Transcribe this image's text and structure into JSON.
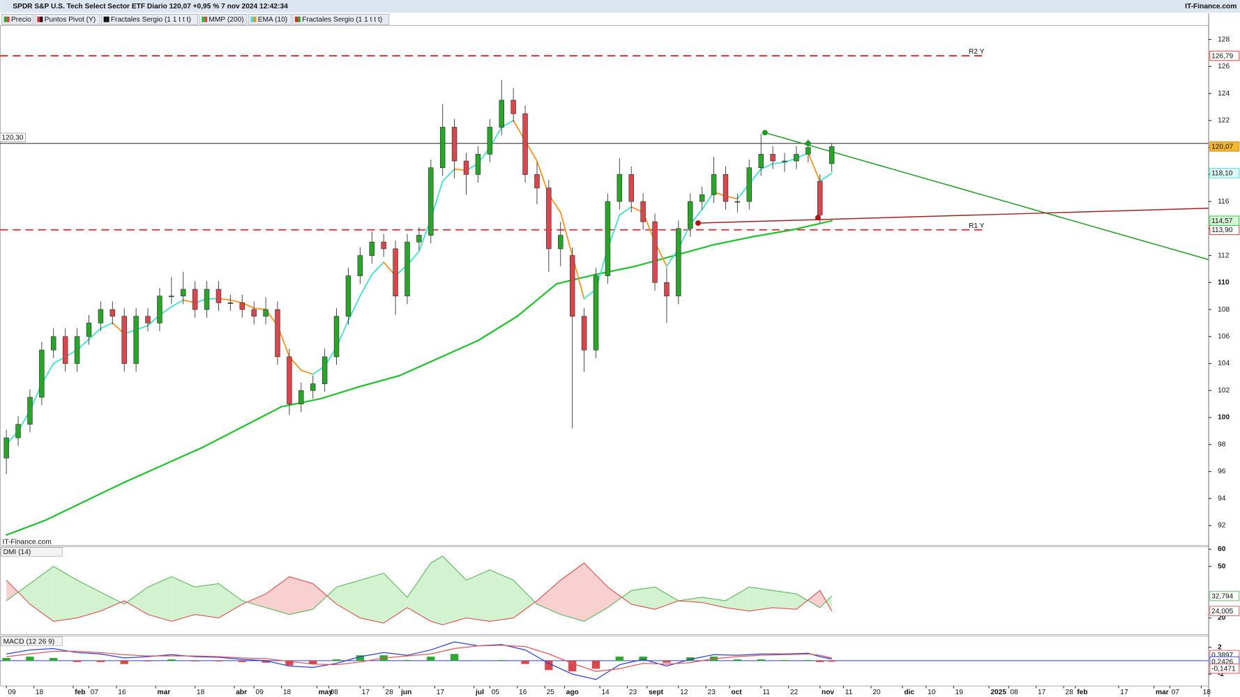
{
  "chart_data": [
    {
      "type": "candlestick",
      "title": "SPDR S&P U.S. Tech Select Sector ETF Diario 120,07 +0,95 % 7 nov 2024 12:42:34",
      "source": "IT-Finance.com",
      "watermark": "IT-Finance.com",
      "legend": [
        "Precio",
        "Puntos Pivot (Y)",
        "Fractales Sergio (1 1 t t t)",
        "MMP (200)",
        "EMA (10)",
        "Fractales Sergio (1 1 t t t)"
      ],
      "x": [
        0,
        3,
        6,
        9,
        12,
        15,
        18,
        21,
        24,
        27,
        30,
        33,
        36,
        39,
        42,
        45,
        48,
        51,
        54,
        57,
        60,
        63,
        66,
        69,
        72,
        75,
        78,
        81,
        84,
        87,
        90,
        93,
        96,
        99,
        102,
        105,
        108,
        111,
        114,
        117,
        120,
        123,
        126,
        129,
        132,
        135,
        138,
        141,
        144,
        147,
        150,
        153,
        156,
        159,
        162,
        165,
        168,
        171,
        174,
        177,
        180,
        183,
        186,
        189,
        192,
        195,
        198,
        201,
        204,
        207,
        210
      ],
      "open": [
        97,
        98.5,
        99.5,
        101.5,
        105,
        106,
        104,
        106,
        107,
        108,
        107.5,
        104,
        107.5,
        107,
        109,
        109,
        109.5,
        108,
        109.5,
        108.5,
        108.5,
        108,
        107.5,
        108,
        104.5,
        101,
        102,
        102.5,
        104.5,
        107.5,
        110.5,
        112,
        113,
        112.5,
        109,
        113,
        113.5,
        118.5,
        121.5,
        119,
        118,
        119.5,
        121.5,
        123.5,
        122.5,
        118,
        117,
        112.5,
        112,
        107.5,
        105,
        110.5,
        116,
        118,
        116,
        114.5,
        110,
        109,
        114,
        116,
        116.5,
        118,
        116,
        116,
        118.5,
        119.5,
        119,
        119,
        119.5,
        117.5,
        118.8
      ],
      "high": [
        99.1,
        100.1,
        102.1,
        105.6,
        106.6,
        106.6,
        106.6,
        107.6,
        108.6,
        108.6,
        108.1,
        108.1,
        108.1,
        109.6,
        110.4,
        110.8,
        110.1,
        110.1,
        110.1,
        109.1,
        109.1,
        108.6,
        108.9,
        108.6,
        105.1,
        102.6,
        103.1,
        105.1,
        108.1,
        111.1,
        112.6,
        113.8,
        113.6,
        113.1,
        113.6,
        114.1,
        119.1,
        123.2,
        122.1,
        119.6,
        120.1,
        122.1,
        125,
        124.4,
        123.1,
        118.9,
        117.6,
        114.5,
        112.6,
        108.1,
        111.1,
        116.6,
        119.2,
        118.6,
        116.6,
        115.1,
        111.1,
        114.6,
        116.6,
        117.1,
        119.3,
        118.6,
        116.6,
        119.1,
        121,
        120.1,
        119.6,
        120.1,
        120.6,
        118,
        120.3
      ],
      "low": [
        95.8,
        97.9,
        98.9,
        100.9,
        104.4,
        103.4,
        103.4,
        105.4,
        106.4,
        106.9,
        103.4,
        103.4,
        106.4,
        106.4,
        108.4,
        108.4,
        107.4,
        107.4,
        107.9,
        107.9,
        107.4,
        106.9,
        106.9,
        103.9,
        100.2,
        100.4,
        101.4,
        101.9,
        103.9,
        106.9,
        109.9,
        111.4,
        111.9,
        107.6,
        108.4,
        112.4,
        112.9,
        117.9,
        117.7,
        116.5,
        117.4,
        118.9,
        120.9,
        121.9,
        117.4,
        115.8,
        110.8,
        111.2,
        99.2,
        103.4,
        104.4,
        109.9,
        115.4,
        115.2,
        113.9,
        109.4,
        107,
        108.4,
        113.4,
        115.4,
        115.9,
        115.4,
        115.2,
        115.4,
        117.9,
        118.4,
        118.2,
        118.4,
        118.9,
        114.4,
        118.2
      ],
      "close": [
        98.5,
        99.5,
        101.5,
        105,
        106,
        104,
        106,
        107,
        108,
        107.5,
        104,
        107.5,
        107,
        109,
        109,
        109.5,
        108,
        109.5,
        108.5,
        108.5,
        108,
        107.5,
        108,
        104.5,
        101,
        102,
        102.5,
        104.5,
        107.5,
        110.5,
        112,
        113,
        112.5,
        109,
        113,
        113.5,
        118.5,
        121.5,
        119,
        118,
        119.5,
        121.5,
        123.5,
        122.5,
        118,
        117,
        112.5,
        113.5,
        107.5,
        105,
        110.5,
        116,
        118,
        116,
        114.5,
        110,
        109,
        114,
        116,
        116.5,
        118,
        116,
        116,
        118.5,
        119.5,
        119,
        119,
        119.5,
        120,
        115,
        120.07
      ],
      "up_color": "#27a627",
      "down_color": "#d9474d",
      "series": [
        {
          "x": [
            0,
            10,
            20,
            30,
            40,
            50,
            60,
            70,
            80,
            90,
            100,
            110,
            120,
            130,
            140,
            150,
            160,
            170,
            180,
            190,
            200,
            210
          ],
          "values": [
            91.3,
            92.4,
            93.8,
            95.2,
            96.5,
            97.8,
            99.3,
            100.8,
            101.4,
            102.3,
            103.1,
            104.4,
            105.7,
            107.5,
            109.9,
            110.6,
            111.2,
            112,
            112.8,
            113.4,
            113.9,
            114.57
          ],
          "color": "#22c22e",
          "last_label": {
            "value": 114.57,
            "label": "114,57"
          }
        },
        {
          "x": [
            0,
            3,
            6,
            9,
            12,
            15,
            18,
            21,
            24,
            27,
            30,
            33,
            36,
            39,
            42,
            45,
            48,
            51,
            54,
            57,
            60,
            63,
            66,
            69,
            72,
            75,
            78,
            81,
            84,
            87,
            90,
            93,
            96,
            99,
            102,
            105,
            108,
            111,
            114,
            117,
            120,
            123,
            126,
            129,
            132,
            135,
            138,
            141,
            144,
            147,
            150,
            153,
            156,
            159,
            162,
            165,
            168,
            171,
            174,
            177,
            180,
            183,
            186,
            189,
            192,
            195,
            198,
            201,
            204,
            207,
            210
          ],
          "values": [
            98,
            99,
            100.5,
            102.5,
            104,
            104.5,
            105,
            105.8,
            106.6,
            107,
            106.2,
            106.5,
            106.8,
            107.6,
            108.2,
            108.7,
            108.5,
            108.8,
            108.8,
            108.7,
            108.5,
            108.1,
            108,
            106.8,
            104.5,
            103.5,
            103.2,
            103.8,
            105.2,
            107.2,
            109,
            110.6,
            111.5,
            110.5,
            111.3,
            112.3,
            114.7,
            117.5,
            118.4,
            118.3,
            118.8,
            120,
            121.5,
            122,
            120.5,
            119,
            116.5,
            115.2,
            112,
            108.8,
            109.5,
            112.5,
            115,
            115.6,
            115.2,
            113,
            111.2,
            112.5,
            114.3,
            115.4,
            116.7,
            116.4,
            116.2,
            117.3,
            118.4,
            118.8,
            118.9,
            119.2,
            119.6,
            117.5,
            118.1
          ],
          "color": "#3fe0d2",
          "down_color": "#f7931e",
          "last_label": {
            "value": 118.1,
            "label": "118,10"
          }
        }
      ],
      "levels": [
        {
          "name": "R2 Y",
          "value": 126.79,
          "label": "126,79",
          "color": "#e3262b"
        },
        {
          "name": "R1 Y",
          "value": 113.9,
          "label": "113,90",
          "color": "#e3262b"
        }
      ],
      "price_line": {
        "value": 120.3,
        "label": "120,30"
      },
      "last_price": {
        "value": 120.07,
        "label": "120,07"
      },
      "trendlines": [
        {
          "x": [
            193,
            305.8
          ],
          "values": [
            121.1,
            111.7
          ],
          "color": "#1f9a1f"
        },
        {
          "x": [
            176,
            305.8
          ],
          "values": [
            114.4,
            115.5
          ],
          "color": "#a01f1f"
        }
      ],
      "fractals": [
        {
          "x": 193,
          "value": 121.1,
          "color": "#1f9a1f"
        },
        {
          "x": 204,
          "value": 120.3,
          "color": "#1f9a1f"
        },
        {
          "x": 176,
          "value": 114.4,
          "color": "#b01818"
        },
        {
          "x": 206.5,
          "value": 114.8,
          "color": "#b01818"
        }
      ],
      "xlim": [
        -1.6,
        305.8
      ],
      "xticks": [
        {
          "value": 0,
          "label": "09"
        },
        {
          "value": 7,
          "label": "18"
        },
        {
          "value": 17,
          "label": "feb"
        },
        {
          "value": 21,
          "label": "07"
        },
        {
          "value": 28,
          "label": "16"
        },
        {
          "value": 38,
          "label": "mar"
        },
        {
          "value": 48,
          "label": "18"
        },
        {
          "value": 58,
          "label": "abr"
        },
        {
          "value": 63,
          "label": "09"
        },
        {
          "value": 70,
          "label": "18"
        },
        {
          "value": 79,
          "label": "may"
        },
        {
          "value": 82,
          "label": "08"
        },
        {
          "value": 90,
          "label": "17"
        },
        {
          "value": 96,
          "label": "28"
        },
        {
          "value": 100,
          "label": "jun"
        },
        {
          "value": 109,
          "label": "17"
        },
        {
          "value": 119,
          "label": "jul"
        },
        {
          "value": 123,
          "label": "05"
        },
        {
          "value": 130,
          "label": "16"
        },
        {
          "value": 137,
          "label": "25"
        },
        {
          "value": 142,
          "label": "ago"
        },
        {
          "value": 151,
          "label": "14"
        },
        {
          "value": 158,
          "label": "23"
        },
        {
          "value": 163,
          "label": "sept"
        },
        {
          "value": 171,
          "label": "12"
        },
        {
          "value": 178,
          "label": "23"
        },
        {
          "value": 184,
          "label": "oct"
        },
        {
          "value": 192,
          "label": "11"
        },
        {
          "value": 199,
          "label": "22"
        },
        {
          "value": 207,
          "label": "nov"
        },
        {
          "value": 213,
          "label": "11"
        },
        {
          "value": 220,
          "label": "20"
        },
        {
          "value": 228,
          "label": "dic"
        },
        {
          "value": 234,
          "label": "10"
        },
        {
          "value": 241,
          "label": "19"
        },
        {
          "value": 250,
          "label": "2025"
        },
        {
          "value": 255,
          "label": "08"
        },
        {
          "value": 262,
          "label": "17"
        },
        {
          "value": 269,
          "label": "28"
        },
        {
          "value": 272,
          "label": "feb"
        },
        {
          "value": 283,
          "label": "17"
        },
        {
          "value": 292,
          "label": "mar"
        },
        {
          "value": 296,
          "label": "07"
        },
        {
          "value": 304,
          "label": "18"
        }
      ],
      "ylim": [
        90.54,
        129.05
      ],
      "yticks": [
        92,
        94,
        96,
        98,
        100,
        102,
        104,
        106,
        108,
        110,
        112,
        114,
        116,
        118,
        120,
        122,
        124,
        126,
        128
      ],
      "bold_ticks": [
        100,
        110
      ]
    },
    {
      "type": "area",
      "title": "DMI (14)",
      "x": [
        0,
        6,
        12,
        18,
        24,
        30,
        36,
        42,
        48,
        54,
        60,
        66,
        72,
        78,
        84,
        90,
        96,
        102,
        108,
        111,
        117,
        123,
        129,
        135,
        141,
        147,
        153,
        159,
        165,
        171,
        177,
        183,
        189,
        195,
        201,
        207,
        210
      ],
      "series": [
        {
          "values": [
            30,
            40,
            50,
            42,
            35,
            28,
            38,
            44,
            38,
            40,
            30,
            26,
            22,
            25,
            38,
            42,
            46,
            32,
            52,
            56,
            42,
            48,
            42,
            28,
            22,
            18,
            26,
            36,
            38,
            30,
            32,
            30,
            38,
            36,
            34,
            26,
            32.794
          ],
          "color": "#5cb85c",
          "fill": "#d3f2d0",
          "last_label": {
            "value": 32.794,
            "label": "32,794"
          }
        },
        {
          "values": [
            42,
            28,
            18,
            20,
            24,
            30,
            22,
            18,
            22,
            20,
            28,
            34,
            44,
            40,
            28,
            20,
            17,
            26,
            18,
            16,
            20,
            18,
            20,
            30,
            42,
            52,
            38,
            28,
            25,
            30,
            29,
            26,
            24,
            26,
            25,
            36,
            24.005
          ],
          "color": "#d9534f",
          "fill": "#f7d0cf",
          "last_label": {
            "value": 24.005,
            "label": "24,005"
          }
        }
      ],
      "ylim": [
        10.3,
        61.4
      ],
      "yticks": [
        20,
        50,
        60
      ]
    },
    {
      "type": "combo",
      "title": "MACD (12 26 9)",
      "x": [
        0,
        6,
        12,
        18,
        24,
        30,
        36,
        42,
        48,
        54,
        60,
        66,
        72,
        78,
        84,
        90,
        96,
        102,
        108,
        114,
        120,
        126,
        132,
        138,
        144,
        150,
        156,
        162,
        168,
        174,
        180,
        186,
        192,
        198,
        204,
        207,
        210
      ],
      "series": [
        {
          "values": [
            1,
            1.6,
            1.8,
            1.2,
            1,
            0.4,
            0.6,
            0.9,
            0.6,
            0.5,
            0.2,
            0,
            -0.8,
            -1,
            -0.4,
            0.6,
            1.2,
            0.8,
            1.6,
            2.8,
            2.2,
            2.4,
            1.6,
            -0.4,
            -2,
            -2.8,
            -0.6,
            0.2,
            -0.8,
            0.2,
            0.9,
            0.8,
            1,
            1,
            1.1,
            0.6,
            0.2426
          ],
          "color": "#2b3fd0",
          "last_label": {
            "value": 0.2426,
            "label": "0,2426"
          }
        },
        {
          "values": [
            0.6,
            1,
            1.4,
            1.4,
            1.2,
            0.9,
            0.7,
            0.7,
            0.7,
            0.6,
            0.4,
            0.3,
            -0.1,
            -0.5,
            -0.6,
            -0.2,
            0.4,
            0.7,
            1,
            1.8,
            2.2,
            2.3,
            2.1,
            1,
            -0.4,
            -1.6,
            -1.2,
            -0.4,
            -0.5,
            -0.3,
            0.3,
            0.6,
            0.8,
            0.9,
            1,
            0.8,
            0.3897
          ],
          "color": "#e0555a",
          "last_label": {
            "value": 0.3897,
            "label": "0,3897"
          }
        }
      ],
      "histogram": {
        "values": [
          0.4,
          0.6,
          0.4,
          -0.2,
          -0.2,
          -0.5,
          -0.1,
          0.2,
          -0.1,
          -0.1,
          -0.2,
          -0.3,
          -0.7,
          -0.5,
          0.2,
          0.8,
          0.8,
          0.1,
          0.6,
          1,
          0,
          0.1,
          -0.5,
          -1.4,
          -1.6,
          -1.2,
          0.6,
          0.6,
          -0.3,
          0.5,
          0.6,
          0.2,
          0.2,
          0.1,
          0.1,
          -0.2,
          -0.1471
        ],
        "up_color": "#2ea82e",
        "down_color": "#d9474d",
        "last_label": {
          "value": -0.1471,
          "label": "-0,1471"
        }
      },
      "ylim": [
        -3.76,
        3.65
      ],
      "yticks": [
        -2,
        2
      ]
    }
  ]
}
